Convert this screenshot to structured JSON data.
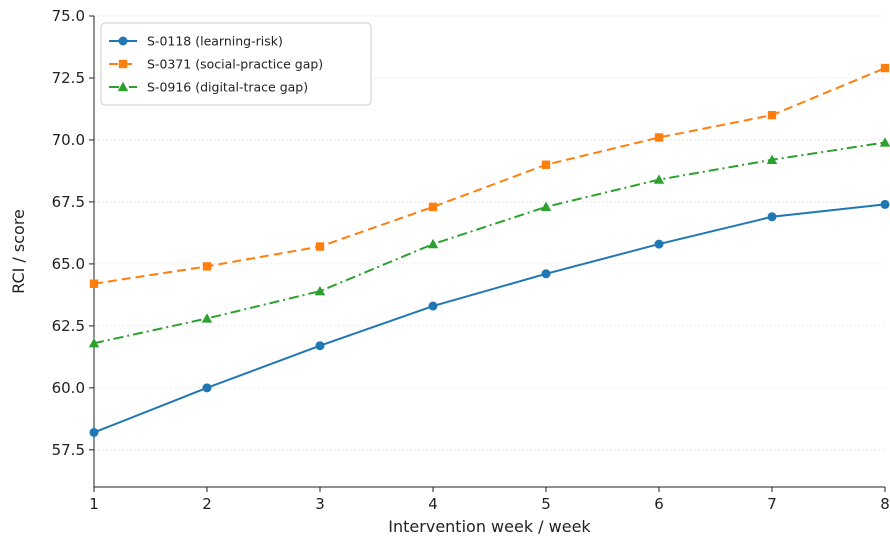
{
  "chart_data": {
    "type": "line",
    "title": "",
    "xlabel": "Intervention week / week",
    "ylabel": "RCI / score",
    "x": [
      1,
      2,
      3,
      4,
      5,
      6,
      7,
      8
    ],
    "xlim": [
      1,
      8
    ],
    "ylim": [
      56.0,
      75.0
    ],
    "x_ticks": [
      "1",
      "2",
      "3",
      "4",
      "5",
      "6",
      "7",
      "8"
    ],
    "y_ticks": [
      "57.5",
      "60.0",
      "62.5",
      "65.0",
      "67.5",
      "70.0",
      "72.5",
      "75.0"
    ],
    "grid": "horizontal, dashed, light",
    "legend_position": "top-left",
    "series": [
      {
        "name": "S-0118 (learning-risk)",
        "values": [
          58.2,
          60.0,
          61.7,
          63.3,
          64.6,
          65.8,
          66.9,
          67.4
        ],
        "color": "#1f77b4",
        "marker": "circle",
        "line_style": "solid"
      },
      {
        "name": "S-0371 (social-practice gap)",
        "values": [
          64.2,
          64.9,
          65.7,
          67.3,
          69.0,
          70.1,
          71.0,
          72.9
        ],
        "color": "#ff7f0e",
        "marker": "square",
        "line_style": "dashed"
      },
      {
        "name": "S-0916 (digital-trace gap)",
        "values": [
          61.8,
          62.8,
          63.9,
          65.8,
          67.3,
          68.4,
          69.2,
          69.9
        ],
        "color": "#2ca02c",
        "marker": "triangle",
        "line_style": "dashdot"
      }
    ]
  }
}
